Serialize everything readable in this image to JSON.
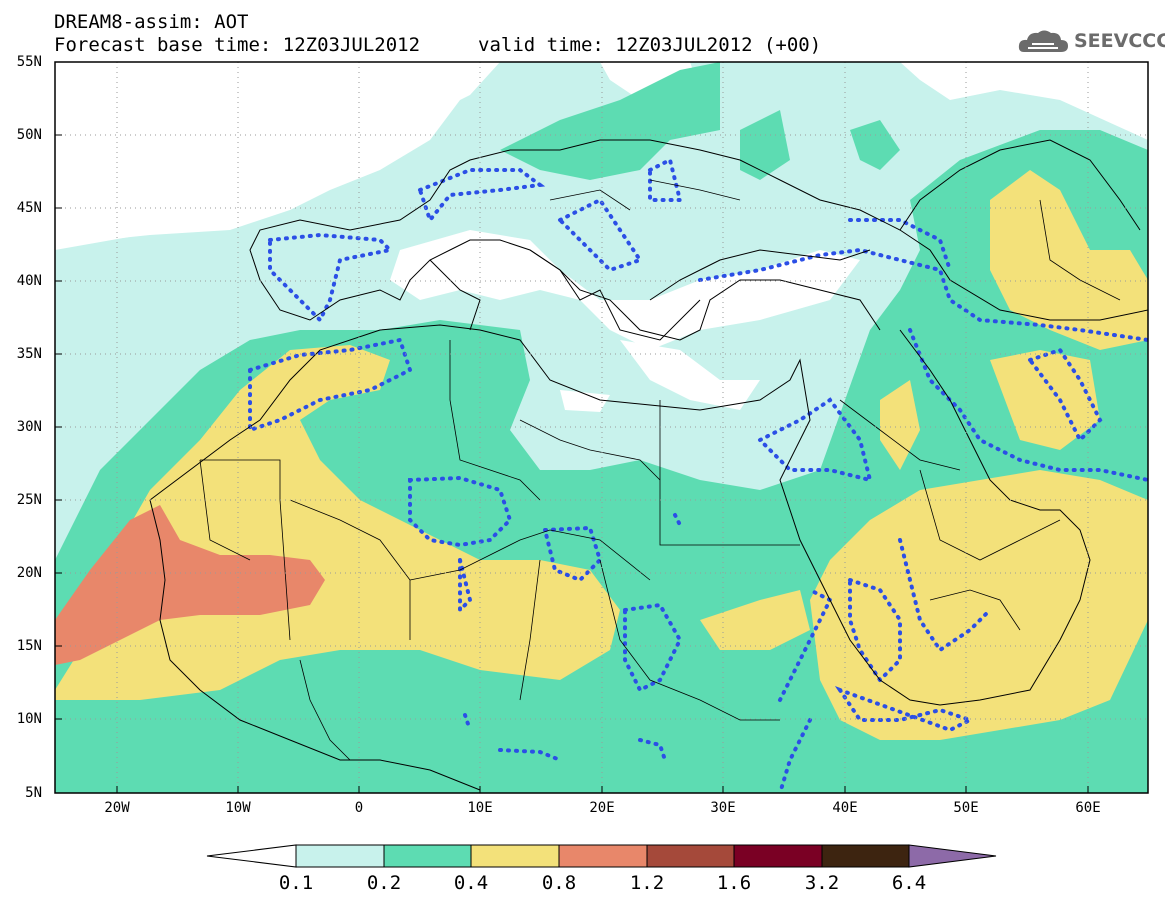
{
  "header": {
    "title_line1": "DREAM8-assim: AOT",
    "title_line2": "Forecast base time: 12Z03JUL2012",
    "valid_time": "valid time: 12Z03JUL2012 (+00)",
    "logo_text": "SEEVCCC"
  },
  "map": {
    "lat_labels": [
      "55N",
      "50N",
      "45N",
      "40N",
      "35N",
      "30N",
      "25N",
      "20N",
      "15N",
      "10N",
      "5N"
    ],
    "lon_labels": [
      "20W",
      "10W",
      "0",
      "10E",
      "20E",
      "30E",
      "40E",
      "50E",
      "60E"
    ],
    "lat_range": [
      5,
      55
    ],
    "lon_range": [
      -25,
      65
    ],
    "field_colors": {
      "0.1": "#c8f2ec",
      "0.2": "#5ddcb2",
      "0.4": "#f3e17a",
      "0.8": "#e8876a"
    }
  },
  "colorbar": {
    "levels": [
      "0.1",
      "0.2",
      "0.4",
      "0.8",
      "1.2",
      "1.6",
      "3.2",
      "6.4"
    ],
    "colors": [
      "#c8f2ec",
      "#5ddcb2",
      "#f3e17a",
      "#e8876a",
      "#a5493a",
      "#7a0024",
      "#3d2410",
      "#8d6aa8"
    ]
  }
}
